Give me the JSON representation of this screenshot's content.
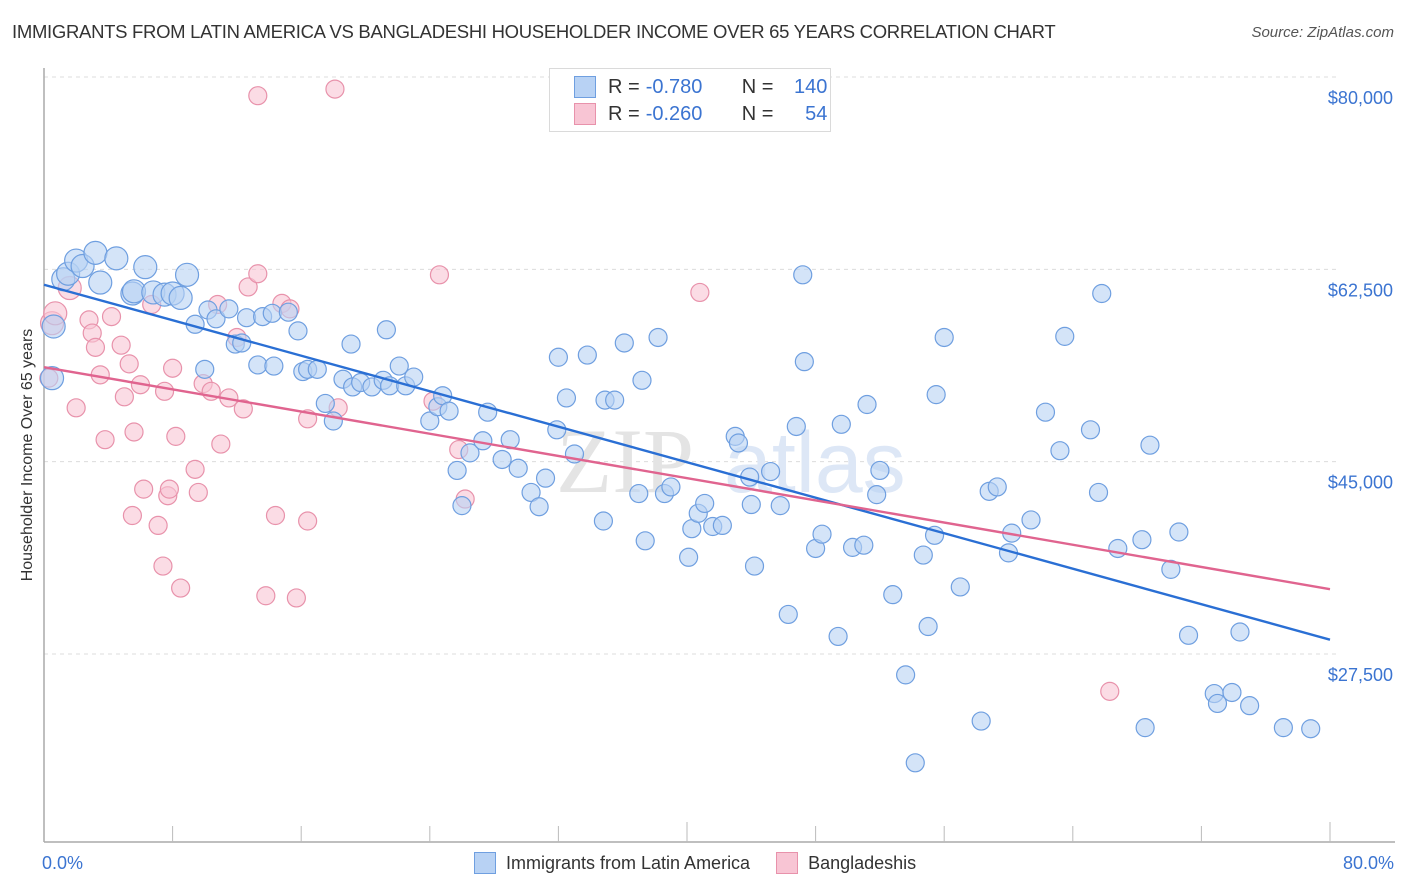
{
  "header": {
    "title": "IMMIGRANTS FROM LATIN AMERICA VS BANGLADESHI HOUSEHOLDER INCOME OVER 65 YEARS CORRELATION CHART",
    "source": "Source: ZipAtlas.com"
  },
  "legend": {
    "series1": {
      "r_label": "R =",
      "r_value": "-0.780",
      "n_label": "N =",
      "n_value": "140"
    },
    "series2": {
      "r_label": "R =",
      "r_value": "-0.260",
      "n_label": "N =",
      "n_value": "54"
    }
  },
  "bottom_legend": {
    "series1": "Immigrants from Latin America",
    "series2": "Bangladeshis"
  },
  "watermark": {
    "zip": "ZIP",
    "atlas": "atlas"
  },
  "chart_data": {
    "type": "scatter",
    "title": "IMMIGRANTS FROM LATIN AMERICA VS BANGLADESHI HOUSEHOLDER INCOME OVER 65 YEARS CORRELATION CHART",
    "xlabel": "",
    "ylabel": "Householder Income Over 65 years",
    "xlim": [
      0,
      80
    ],
    "ylim": [
      11000,
      82500
    ],
    "x_tick_labels": [
      "0.0%",
      "80.0%"
    ],
    "y_ticks": [
      80000,
      62500,
      45000,
      27500
    ],
    "y_tick_labels": [
      "$80,000",
      "$62,500",
      "$45,000",
      "$27,500"
    ],
    "grid": true,
    "legend_position": "top-center",
    "series": [
      {
        "name": "Immigrants from Latin America",
        "color": "#6f9fe0",
        "fill": "#b8d2f4",
        "R": -0.78,
        "N": 140,
        "trend": {
          "x": [
            0,
            80
          ],
          "y": [
            61100,
            28800
          ]
        },
        "points": [
          [
            0.5,
            52600
          ],
          [
            0.6,
            57300
          ],
          [
            1.2,
            61600
          ],
          [
            1.5,
            62100
          ],
          [
            2.0,
            63300
          ],
          [
            2.4,
            62800
          ],
          [
            3.2,
            64000
          ],
          [
            3.5,
            61300
          ],
          [
            4.5,
            63500
          ],
          [
            5.5,
            60300
          ],
          [
            5.6,
            60500
          ],
          [
            6.3,
            62700
          ],
          [
            6.8,
            60400
          ],
          [
            7.5,
            60200
          ],
          [
            8.0,
            60300
          ],
          [
            8.5,
            59900
          ],
          [
            8.9,
            62000
          ],
          [
            9.4,
            57500
          ],
          [
            10.0,
            53400
          ],
          [
            10.2,
            58800
          ],
          [
            10.7,
            58000
          ],
          [
            11.5,
            58900
          ],
          [
            11.9,
            55700
          ],
          [
            12.3,
            55800
          ],
          [
            12.6,
            58100
          ],
          [
            13.3,
            53800
          ],
          [
            13.6,
            58200
          ],
          [
            14.2,
            58500
          ],
          [
            14.3,
            53700
          ],
          [
            15.2,
            58600
          ],
          [
            15.8,
            56900
          ],
          [
            16.1,
            53200
          ],
          [
            16.4,
            53400
          ],
          [
            17.0,
            53400
          ],
          [
            17.5,
            50300
          ],
          [
            18.0,
            48700
          ],
          [
            18.6,
            52500
          ],
          [
            19.1,
            55700
          ],
          [
            19.2,
            51800
          ],
          [
            19.7,
            52200
          ],
          [
            20.4,
            51800
          ],
          [
            21.1,
            52400
          ],
          [
            21.3,
            57000
          ],
          [
            21.5,
            51900
          ],
          [
            22.1,
            53700
          ],
          [
            22.5,
            51900
          ],
          [
            23.0,
            52700
          ],
          [
            24.0,
            48700
          ],
          [
            24.5,
            50000
          ],
          [
            24.8,
            51000
          ],
          [
            25.2,
            49600
          ],
          [
            25.7,
            44200
          ],
          [
            26.0,
            41000
          ],
          [
            26.5,
            45800
          ],
          [
            27.3,
            46900
          ],
          [
            27.6,
            49500
          ],
          [
            28.5,
            45200
          ],
          [
            29.0,
            47000
          ],
          [
            29.5,
            44400
          ],
          [
            30.3,
            42200
          ],
          [
            30.8,
            40900
          ],
          [
            31.2,
            43500
          ],
          [
            31.9,
            47900
          ],
          [
            32.0,
            54500
          ],
          [
            32.5,
            50800
          ],
          [
            33.0,
            45700
          ],
          [
            33.8,
            54700
          ],
          [
            34.8,
            39600
          ],
          [
            34.9,
            50600
          ],
          [
            35.5,
            50600
          ],
          [
            36.1,
            55800
          ],
          [
            37.0,
            42100
          ],
          [
            37.2,
            52400
          ],
          [
            37.4,
            37800
          ],
          [
            38.2,
            56300
          ],
          [
            38.6,
            42100
          ],
          [
            39.0,
            42700
          ],
          [
            40.1,
            36300
          ],
          [
            40.3,
            38900
          ],
          [
            40.7,
            40300
          ],
          [
            41.1,
            41200
          ],
          [
            41.6,
            39100
          ],
          [
            42.2,
            39200
          ],
          [
            43.0,
            47300
          ],
          [
            43.2,
            46700
          ],
          [
            43.9,
            43600
          ],
          [
            44.0,
            41100
          ],
          [
            44.2,
            35500
          ],
          [
            45.2,
            44100
          ],
          [
            45.8,
            41000
          ],
          [
            46.3,
            31100
          ],
          [
            46.8,
            48200
          ],
          [
            47.2,
            62000
          ],
          [
            47.3,
            54100
          ],
          [
            48.0,
            37100
          ],
          [
            48.4,
            38400
          ],
          [
            49.4,
            29100
          ],
          [
            49.6,
            48400
          ],
          [
            50.3,
            37200
          ],
          [
            51.0,
            37400
          ],
          [
            51.2,
            50200
          ],
          [
            51.8,
            42000
          ],
          [
            52.0,
            44200
          ],
          [
            52.8,
            32900
          ],
          [
            53.6,
            25600
          ],
          [
            54.7,
            36500
          ],
          [
            55.0,
            30000
          ],
          [
            55.4,
            38300
          ],
          [
            55.5,
            51100
          ],
          [
            56.0,
            56300
          ],
          [
            57.0,
            33600
          ],
          [
            58.3,
            21400
          ],
          [
            58.8,
            42300
          ],
          [
            59.3,
            42700
          ],
          [
            60.0,
            36700
          ],
          [
            60.2,
            38500
          ],
          [
            61.4,
            39700
          ],
          [
            62.3,
            49500
          ],
          [
            63.2,
            46000
          ],
          [
            63.5,
            56400
          ],
          [
            65.1,
            47900
          ],
          [
            65.6,
            42200
          ],
          [
            65.8,
            60300
          ],
          [
            66.8,
            37100
          ],
          [
            68.3,
            37900
          ],
          [
            68.5,
            20800
          ],
          [
            68.8,
            46500
          ],
          [
            70.1,
            35200
          ],
          [
            70.6,
            38600
          ],
          [
            71.2,
            29200
          ],
          [
            72.8,
            23900
          ],
          [
            73.0,
            23000
          ],
          [
            73.9,
            24000
          ],
          [
            74.4,
            29500
          ],
          [
            75.0,
            22800
          ],
          [
            77.1,
            20800
          ],
          [
            78.8,
            20700
          ],
          [
            54.2,
            17600
          ]
        ]
      },
      {
        "name": "Bangladeshis",
        "color": "#e892ab",
        "fill": "#f8c5d4",
        "R": -0.26,
        "N": 54,
        "trend": {
          "x": [
            0,
            80
          ],
          "y": [
            53600,
            33400
          ]
        },
        "points": [
          [
            0.5,
            57600
          ],
          [
            0.7,
            58500
          ],
          [
            1.6,
            60800
          ],
          [
            2.0,
            49900
          ],
          [
            2.8,
            57900
          ],
          [
            3.0,
            56700
          ],
          [
            3.2,
            55400
          ],
          [
            3.5,
            52900
          ],
          [
            3.8,
            47000
          ],
          [
            4.2,
            58200
          ],
          [
            4.8,
            55600
          ],
          [
            5.0,
            50900
          ],
          [
            5.3,
            53900
          ],
          [
            5.5,
            40100
          ],
          [
            5.6,
            47700
          ],
          [
            6.0,
            52000
          ],
          [
            6.2,
            42500
          ],
          [
            6.7,
            59300
          ],
          [
            7.1,
            39200
          ],
          [
            7.4,
            35500
          ],
          [
            7.5,
            51400
          ],
          [
            7.7,
            41900
          ],
          [
            7.8,
            42500
          ],
          [
            8.0,
            53500
          ],
          [
            8.2,
            47300
          ],
          [
            8.5,
            33500
          ],
          [
            9.4,
            44300
          ],
          [
            9.6,
            42200
          ],
          [
            9.9,
            52100
          ],
          [
            10.4,
            51400
          ],
          [
            10.8,
            59300
          ],
          [
            11.0,
            46600
          ],
          [
            11.5,
            50800
          ],
          [
            12.0,
            56300
          ],
          [
            12.4,
            49800
          ],
          [
            12.7,
            60900
          ],
          [
            13.3,
            62100
          ],
          [
            13.3,
            78300
          ],
          [
            13.8,
            32800
          ],
          [
            14.4,
            40100
          ],
          [
            14.8,
            59400
          ],
          [
            15.3,
            58900
          ],
          [
            15.7,
            32600
          ],
          [
            16.4,
            39600
          ],
          [
            16.4,
            48900
          ],
          [
            18.1,
            78900
          ],
          [
            18.3,
            49900
          ],
          [
            24.2,
            50500
          ],
          [
            24.6,
            62000
          ],
          [
            25.8,
            46100
          ],
          [
            26.2,
            41600
          ],
          [
            40.8,
            60400
          ],
          [
            66.3,
            24100
          ],
          [
            0.3,
            52600
          ]
        ]
      }
    ]
  }
}
